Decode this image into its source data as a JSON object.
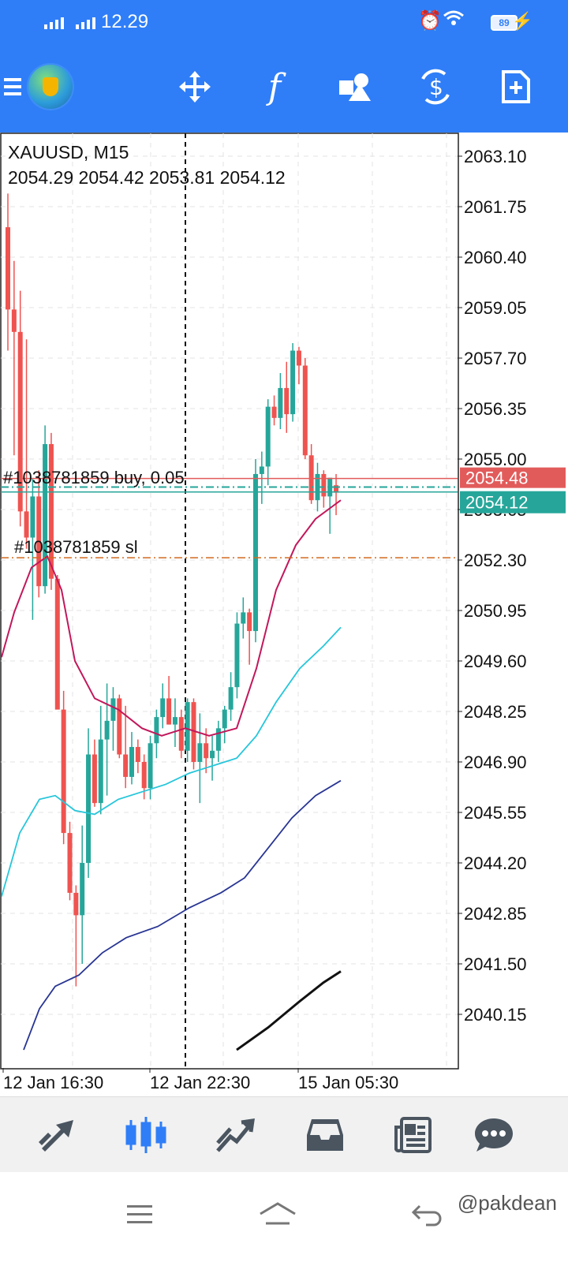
{
  "status_bar": {
    "time": "12.29",
    "battery": "89"
  },
  "toolbar": {
    "icons": [
      "menu-icon",
      "metatrader-logo",
      "crosshair-icon",
      "indicators-icon",
      "objects-icon",
      "trade-icon",
      "new-order-icon"
    ]
  },
  "chart": {
    "symbol_timeframe": "XAUUSD, M15",
    "ohlc": "2054.29 2054.42 2053.81 2054.12",
    "price_axis": [
      "2063.10",
      "2061.75",
      "2060.40",
      "2059.05",
      "2057.70",
      "2056.35",
      "2055.00",
      "2053.65",
      "2052.30",
      "2050.95",
      "2049.60",
      "2048.25",
      "2046.90",
      "2045.55",
      "2044.20",
      "2042.85",
      "2041.50",
      "2040.15"
    ],
    "time_axis": [
      "12 Jan 16:30",
      "12 Jan 22:30",
      "15 Jan 05:30"
    ],
    "ask_price": "2054.48",
    "bid_price": "2054.12",
    "order_label": "#1038781859 buy, 0.05",
    "sl_label": "#1038781859 sl",
    "colors": {
      "bull": "#26a69a",
      "bear": "#ef5350",
      "ask": "#e25b5b",
      "bid": "#26a69a",
      "sl": "#d2691e",
      "ma_fast": "#c2185b",
      "ma_mid": "#26c6da",
      "ma_slow": "#283593",
      "ma_long": "#111111"
    }
  },
  "bottom_nav": [
    "quotes-icon",
    "chart-icon",
    "trade-icon",
    "history-icon",
    "news-icon",
    "messages-icon"
  ],
  "watermark": "@pakdean"
}
